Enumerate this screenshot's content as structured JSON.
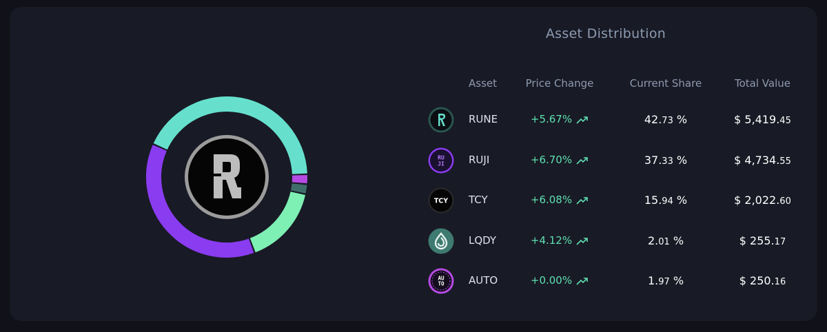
{
  "title": "Asset Distribution",
  "columns": {
    "asset": "Asset",
    "price_change": "Price Change",
    "current_share": "Current Share",
    "total_value": "Total Value"
  },
  "colors": {
    "RUNE": "#66e0cd",
    "RUJI": "#8a3cf0",
    "TCY": "#7ef0b4",
    "LQDY": "#3f6d6a",
    "AUTO": "#b54be3"
  },
  "assets": [
    {
      "name": "RUNE",
      "icon": "rune-logo-icon",
      "change": "+5.67%",
      "share_main": "42.",
      "share_dec": "73",
      "share_unit": " %",
      "value_main": "$ 5,419.",
      "value_dec": "45",
      "share": 42.73
    },
    {
      "name": "RUJI",
      "icon": "ruji-logo-icon",
      "change": "+6.70%",
      "share_main": "37.",
      "share_dec": "33",
      "share_unit": " %",
      "value_main": "$ 4,734.",
      "value_dec": "55",
      "share": 37.33
    },
    {
      "name": "TCY",
      "icon": "tcy-logo-icon",
      "change": "+6.08%",
      "share_main": "15.",
      "share_dec": "94",
      "share_unit": " %",
      "value_main": "$ 2,022.",
      "value_dec": "60",
      "share": 15.94
    },
    {
      "name": "LQDY",
      "icon": "lqdy-logo-icon",
      "change": "+4.12%",
      "share_main": "2.",
      "share_dec": "01",
      "share_unit": " %",
      "value_main": "$ 255.",
      "value_dec": "17",
      "share": 2.01
    },
    {
      "name": "AUTO",
      "icon": "auto-logo-icon",
      "change": "+0.00%",
      "share_main": "1.",
      "share_dec": "97",
      "share_unit": " %",
      "value_main": "$ 250.",
      "value_dec": "16",
      "share": 1.97
    }
  ],
  "tcy_label": "TCY",
  "ruji_label": "RU JI",
  "auto_label": "AU TO"
}
